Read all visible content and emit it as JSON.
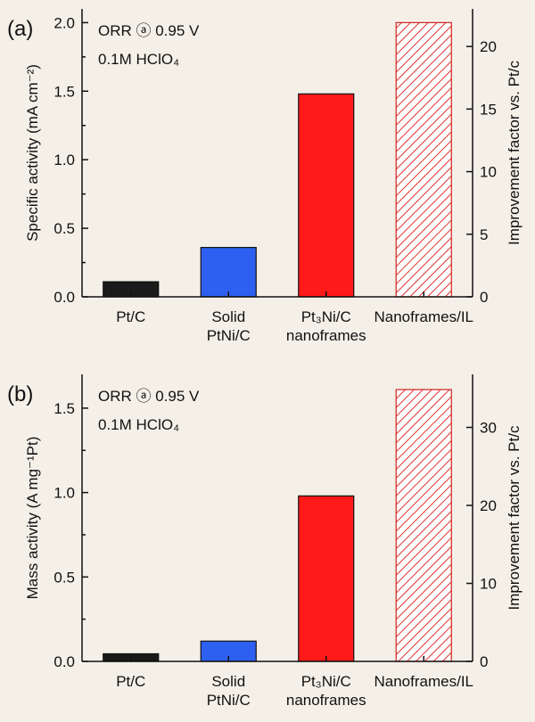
{
  "chart_data": [
    {
      "panel_label": "(a)",
      "type": "bar",
      "annotation_line1": "ORR ⓐ 0.95 V",
      "annotation_line2": "0.1M HClO₄",
      "ylabel": "Specific activity (mA cm⁻²)",
      "y2label": "Improvement factor vs. Pt/c",
      "ylim": [
        0,
        2.1
      ],
      "yticks": [
        "0.0",
        "0.5",
        "1.0",
        "1.5",
        "2.0"
      ],
      "y2lim": [
        0,
        23
      ],
      "y2ticks": [
        "0",
        "5",
        "10",
        "15",
        "20"
      ],
      "categories": [
        [
          "Pt/C"
        ],
        [
          "Solid",
          "PtNi/C"
        ],
        [
          "Pt₃Ni/C",
          "nanoframes"
        ],
        [
          "Nanoframes/IL"
        ]
      ],
      "values": [
        0.11,
        0.36,
        1.48,
        2.0
      ],
      "colors": [
        "#1a1a1a",
        "#2d60f0",
        "#ff1a1a",
        "hatch"
      ]
    },
    {
      "panel_label": "(b)",
      "type": "bar",
      "annotation_line1": "ORR ⓐ 0.95 V",
      "annotation_line2": "0.1M HClO₄",
      "ylabel": "Mass activity (A mg⁻¹Pt)",
      "y2label": "Improvement factor vs. Pt/c",
      "ylim": [
        0,
        1.7
      ],
      "yticks": [
        "0.0",
        "0.5",
        "1.0",
        "1.5"
      ],
      "y2lim": [
        0,
        36.8
      ],
      "y2ticks": [
        "0",
        "10",
        "20",
        "30"
      ],
      "categories": [
        [
          "Pt/C"
        ],
        [
          "Solid",
          "PtNi/C"
        ],
        [
          "Pt₃Ni/C",
          "nanoframes"
        ],
        [
          "Nanoframes/IL"
        ]
      ],
      "values": [
        0.045,
        0.12,
        0.98,
        1.61
      ],
      "colors": [
        "#1a1a1a",
        "#2d60f0",
        "#ff1a1a",
        "hatch"
      ]
    }
  ]
}
